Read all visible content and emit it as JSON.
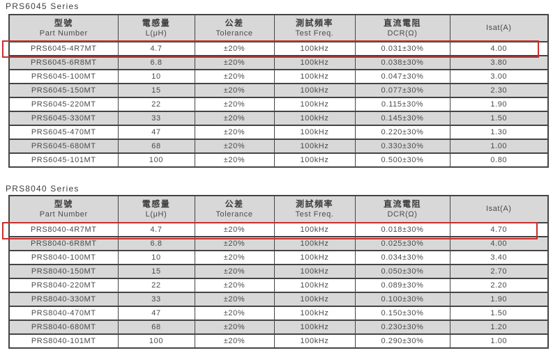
{
  "colors": {
    "highlight_red": "#cb2c2c",
    "row_alt": "#d8d8d8",
    "header_bg": "#d8d8d8",
    "border": "#444444",
    "text": "#4a4a4a"
  },
  "tables": [
    {
      "title": "PRS6045 Series",
      "headers": [
        {
          "zh": "型號",
          "en": "Part Number"
        },
        {
          "zh": "電感量",
          "en": "L(μH)"
        },
        {
          "zh": "公差",
          "en": "Tolerance"
        },
        {
          "zh": "測試頻率",
          "en": "Test Freq."
        },
        {
          "zh": "直流電阻",
          "en": "DCR(Ω)"
        },
        {
          "zh": "",
          "en": "Isat(A)"
        }
      ],
      "highlighted_row": 0,
      "rows": [
        [
          "PRS6045-4R7MT",
          "4.7",
          "±20%",
          "100kHz",
          "0.031±30%",
          "4.00"
        ],
        [
          "PRS6045-6R8MT",
          "6.8",
          "±20%",
          "100kHz",
          "0.038±30%",
          "3.80"
        ],
        [
          "PRS6045-100MT",
          "10",
          "±20%",
          "100kHz",
          "0.047±30%",
          "3.00"
        ],
        [
          "PRS6045-150MT",
          "15",
          "±20%",
          "100kHz",
          "0.077±30%",
          "2.30"
        ],
        [
          "PRS6045-220MT",
          "22",
          "±20%",
          "100kHz",
          "0.115±30%",
          "1.90"
        ],
        [
          "PRS6045-330MT",
          "33",
          "±20%",
          "100kHz",
          "0.145±30%",
          "1.50"
        ],
        [
          "PRS6045-470MT",
          "47",
          "±20%",
          "100kHz",
          "0.220±30%",
          "1.30"
        ],
        [
          "PRS6045-680MT",
          "68",
          "±20%",
          "100kHz",
          "0.330±30%",
          "1.00"
        ],
        [
          "PRS6045-101MT",
          "100",
          "±20%",
          "100kHz",
          "0.500±30%",
          "0.80"
        ]
      ]
    },
    {
      "title": "PRS8040 Series",
      "headers": [
        {
          "zh": "型號",
          "en": "Part Number"
        },
        {
          "zh": "電感量",
          "en": "L(μH)"
        },
        {
          "zh": "公差",
          "en": "Tolerance"
        },
        {
          "zh": "測試頻率",
          "en": "Test Freq."
        },
        {
          "zh": "直流電阻",
          "en": "DCR(Ω)"
        },
        {
          "zh": "",
          "en": "Isat(A)"
        }
      ],
      "highlighted_row": 0,
      "rows": [
        [
          "PRS8040-4R7MT",
          "4.7",
          "±20%",
          "100kHz",
          "0.018±30%",
          "4.70"
        ],
        [
          "PRS8040-6R8MT",
          "6.8",
          "±20%",
          "100kHz",
          "0.025±30%",
          "4.00"
        ],
        [
          "PRS8040-100MT",
          "10",
          "±20%",
          "100kHz",
          "0.034±30%",
          "3.40"
        ],
        [
          "PRS8040-150MT",
          "15",
          "±20%",
          "100kHz",
          "0.050±30%",
          "2.70"
        ],
        [
          "PRS8040-220MT",
          "22",
          "±20%",
          "100kHz",
          "0.089±30%",
          "2.20"
        ],
        [
          "PRS8040-330MT",
          "33",
          "±20%",
          "100kHz",
          "0.100±30%",
          "1.90"
        ],
        [
          "PRS8040-470MT",
          "47",
          "±20%",
          "100kHz",
          "0.150±30%",
          "1.50"
        ],
        [
          "PRS8040-680MT",
          "68",
          "±20%",
          "100kHz",
          "0.230±30%",
          "1.20"
        ],
        [
          "PRS8040-101MT",
          "100",
          "±20%",
          "100kHz",
          "0.290±30%",
          "1.00"
        ]
      ]
    }
  ]
}
